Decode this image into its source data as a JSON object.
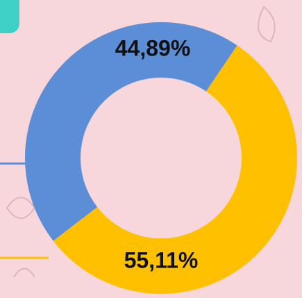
{
  "chart_data": {
    "type": "donut",
    "values": [
      44.89,
      55.11
    ],
    "value_labels": [
      "44,89%",
      "55,11%"
    ],
    "colors": [
      "#5b8ed6",
      "#ffc000"
    ]
  }
}
